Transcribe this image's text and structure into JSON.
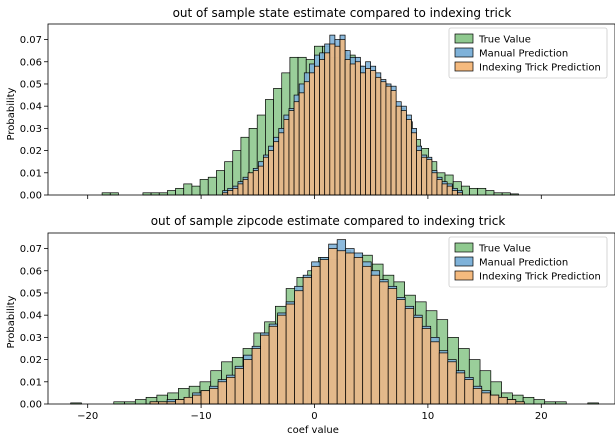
{
  "figure": {
    "shared_xlabel": "coef value"
  },
  "chart_data": [
    {
      "type": "histogram",
      "title": "out of sample state estimate compared to indexing trick",
      "xlabel": "",
      "ylabel": "Probability",
      "xlim": [
        -23.5,
        26.5
      ],
      "ylim": [
        0,
        0.077
      ],
      "xticks": [
        -20,
        -10,
        0,
        10,
        20
      ],
      "yticks": [
        0.0,
        0.01,
        0.02,
        0.03,
        0.04,
        0.05,
        0.06,
        0.07
      ],
      "ytick_labels": [
        "0.00",
        "0.01",
        "0.02",
        "0.03",
        "0.04",
        "0.05",
        "0.06",
        "0.07"
      ],
      "show_xtick_labels": false,
      "grid": false,
      "legend_position": "top-right",
      "series": [
        {
          "name": "True Value",
          "color": "#8fc98f",
          "bin_start": -18.73,
          "bin_width": 0.72,
          "values": [
            0.001,
            0.001,
            0,
            0,
            0,
            0.001,
            0.001,
            0.001,
            0.002,
            0.003,
            0.005,
            0.004,
            0.007,
            0.008,
            0.011,
            0.015,
            0.02,
            0.026,
            0.03,
            0.036,
            0.043,
            0.048,
            0.055,
            0.062,
            0.062,
            0.061,
            0.067,
            0.067,
            0.062,
            0.065,
            0.063,
            0.058,
            0.055,
            0.053,
            0.05,
            0.045,
            0.039,
            0.033,
            0.025,
            0.021,
            0.015,
            0.01,
            0.009,
            0.006,
            0.004,
            0.003,
            0.003,
            0.002,
            0.001,
            0.001,
            0.0005
          ]
        },
        {
          "name": "Manual Prediction",
          "color": "#7fb2d9",
          "bin_start": -8.1,
          "bin_width": 0.45,
          "values": [
            0.002,
            0.003,
            0.004,
            0.006,
            0.008,
            0.01,
            0.012,
            0.015,
            0.018,
            0.022,
            0.026,
            0.03,
            0.036,
            0.039,
            0.045,
            0.05,
            0.055,
            0.059,
            0.063,
            0.064,
            0.068,
            0.072,
            0.07,
            0.072,
            0.065,
            0.062,
            0.062,
            0.058,
            0.06,
            0.058,
            0.055,
            0.052,
            0.05,
            0.049,
            0.042,
            0.04,
            0.036,
            0.03,
            0.022,
            0.018,
            0.017,
            0.011,
            0.008,
            0.006,
            0.005,
            0.003,
            0.002
          ]
        },
        {
          "name": "Indexing Trick Prediction",
          "color": "#f5ba7e",
          "bin_start": -8.1,
          "bin_width": 0.45,
          "values": [
            0.001,
            0.002,
            0.003,
            0.005,
            0.007,
            0.01,
            0.011,
            0.013,
            0.017,
            0.02,
            0.024,
            0.028,
            0.034,
            0.038,
            0.042,
            0.046,
            0.051,
            0.055,
            0.058,
            0.061,
            0.064,
            0.068,
            0.067,
            0.07,
            0.061,
            0.059,
            0.06,
            0.055,
            0.057,
            0.056,
            0.053,
            0.051,
            0.049,
            0.047,
            0.04,
            0.038,
            0.034,
            0.028,
            0.02,
            0.017,
            0.016,
            0.01,
            0.007,
            0.005,
            0.004,
            0.002,
            0.001
          ]
        }
      ],
      "legend": [
        "True Value",
        "Manual Prediction",
        "Indexing Trick Prediction"
      ]
    },
    {
      "type": "histogram",
      "title": "out of sample zipcode estimate compared to indexing trick",
      "xlabel": "coef value",
      "ylabel": "Probability",
      "xlim": [
        -23.5,
        26.5
      ],
      "ylim": [
        0,
        0.077
      ],
      "xticks": [
        -20,
        -10,
        0,
        10,
        20
      ],
      "xtick_labels": [
        "−20",
        "−10",
        "0",
        "10",
        "20"
      ],
      "yticks": [
        0.0,
        0.01,
        0.02,
        0.03,
        0.04,
        0.05,
        0.06,
        0.07
      ],
      "ytick_labels": [
        "0.00",
        "0.01",
        "0.02",
        "0.03",
        "0.04",
        "0.05",
        "0.06",
        "0.07"
      ],
      "show_xtick_labels": true,
      "grid": false,
      "legend_position": "top-right",
      "series": [
        {
          "name": "True Value",
          "color": "#8fc98f",
          "bin_start": -21.5,
          "bin_width": 0.95,
          "values": [
            0.0005,
            0,
            0,
            0,
            0.001,
            0.001,
            0.002,
            0.003,
            0.004,
            0.005,
            0.007,
            0.008,
            0.01,
            0.015,
            0.019,
            0.021,
            0.025,
            0.032,
            0.037,
            0.044,
            0.052,
            0.057,
            0.06,
            0.066,
            0.065,
            0.069,
            0.066,
            0.067,
            0.063,
            0.058,
            0.055,
            0.049,
            0.046,
            0.042,
            0.038,
            0.03,
            0.025,
            0.02,
            0.015,
            0.01,
            0.005,
            0.004,
            0.003,
            0.002,
            0.001,
            0.001,
            0,
            0,
            0.0005
          ]
        },
        {
          "name": "Manual Prediction",
          "color": "#7fb2d9",
          "bin_start": -14.5,
          "bin_width": 0.75,
          "values": [
            0.001,
            0.001,
            0.002,
            0.002,
            0.003,
            0.005,
            0.006,
            0.008,
            0.011,
            0.013,
            0.017,
            0.022,
            0.026,
            0.032,
            0.036,
            0.041,
            0.046,
            0.053,
            0.058,
            0.064,
            0.066,
            0.072,
            0.074,
            0.07,
            0.068,
            0.064,
            0.06,
            0.056,
            0.053,
            0.048,
            0.044,
            0.04,
            0.035,
            0.03,
            0.024,
            0.02,
            0.015,
            0.012,
            0.008,
            0.006,
            0.004,
            0.003,
            0.002,
            0.001
          ]
        },
        {
          "name": "Indexing Trick Prediction",
          "color": "#f5ba7e",
          "bin_start": -14.5,
          "bin_width": 0.75,
          "values": [
            0.001,
            0.001,
            0.001,
            0.002,
            0.003,
            0.004,
            0.006,
            0.007,
            0.01,
            0.012,
            0.016,
            0.02,
            0.025,
            0.031,
            0.035,
            0.04,
            0.045,
            0.051,
            0.057,
            0.062,
            0.065,
            0.07,
            0.069,
            0.068,
            0.066,
            0.062,
            0.058,
            0.055,
            0.052,
            0.047,
            0.043,
            0.039,
            0.034,
            0.028,
            0.023,
            0.019,
            0.014,
            0.011,
            0.007,
            0.005,
            0.004,
            0.003,
            0.002,
            0.001
          ]
        }
      ],
      "legend": [
        "True Value",
        "Manual Prediction",
        "Indexing Trick Prediction"
      ]
    }
  ]
}
